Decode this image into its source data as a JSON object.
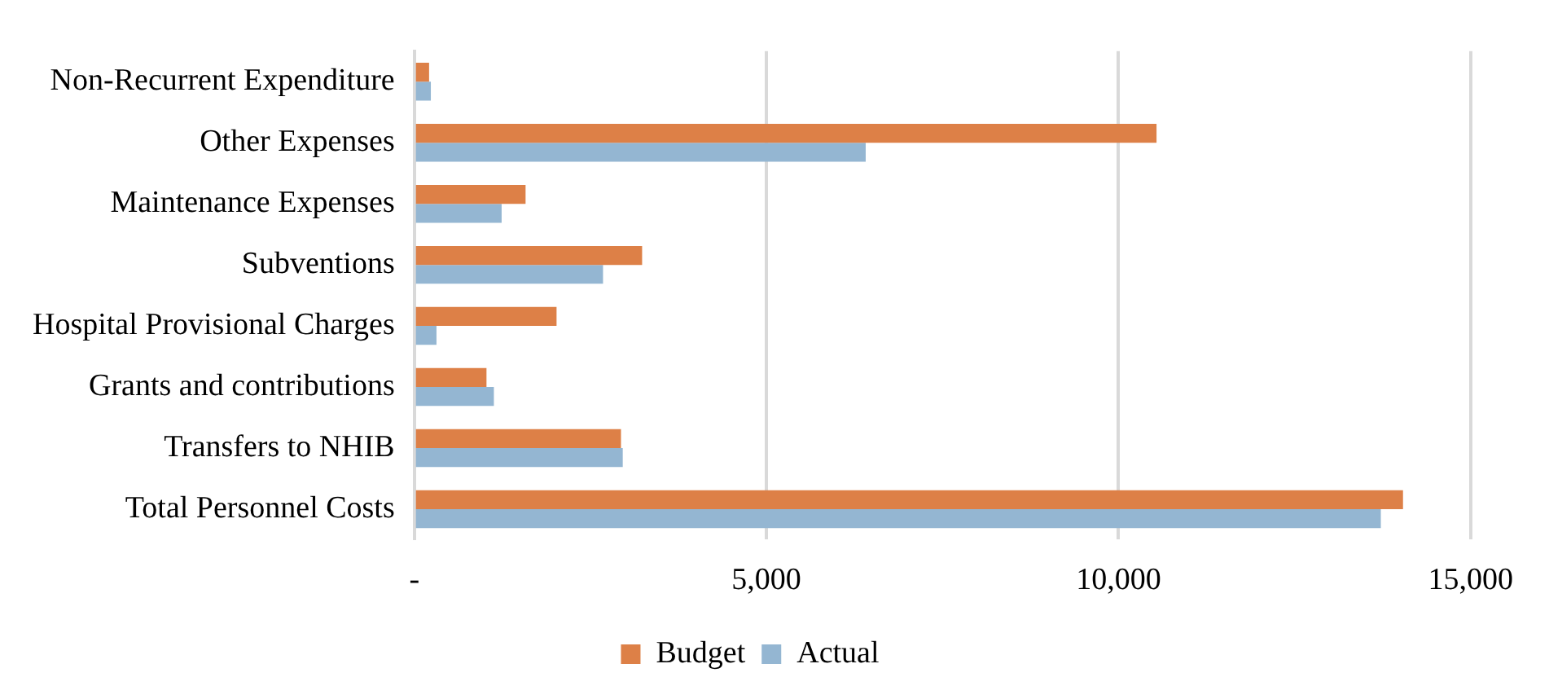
{
  "chart_data": {
    "type": "bar",
    "orientation": "horizontal",
    "categories": [
      "Non-Recurrent Expenditure",
      "Other Expenses",
      "Maintenance Expenses",
      "Subventions",
      "Hospital Provisional Charges",
      "Grants and contributions",
      "Transfers to NHIB",
      "Total Personnel Costs"
    ],
    "series": [
      {
        "name": "Budget",
        "color": "#dd8047",
        "values": [
          210,
          10540,
          1580,
          3235,
          2020,
          1025,
          2935,
          14040
        ]
      },
      {
        "name": "Actual",
        "color": "#94b6d2",
        "values": [
          235,
          6410,
          1240,
          2680,
          315,
          1130,
          2960,
          13725
        ]
      }
    ],
    "xlim": [
      0,
      15000
    ],
    "xticks": [
      {
        "value": 0,
        "label": "-"
      },
      {
        "value": 5000,
        "label": "5,000"
      },
      {
        "value": 10000,
        "label": "10,000"
      },
      {
        "value": 15000,
        "label": "15,000"
      }
    ],
    "grid": "x",
    "legend": "bottom"
  }
}
